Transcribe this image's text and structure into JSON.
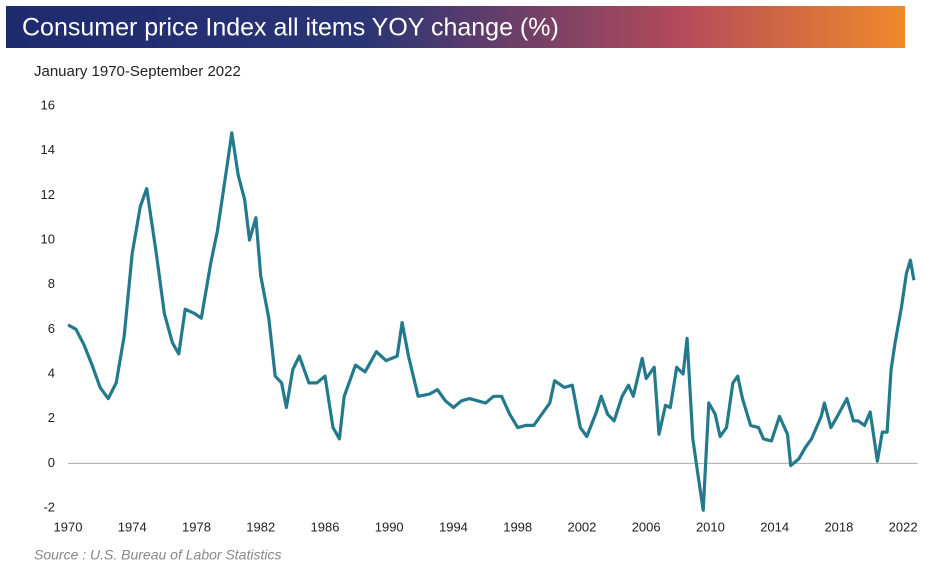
{
  "chart_data": {
    "type": "line",
    "title": "Consumer price Index all items YOY change (%)",
    "subtitle": "January 1970-September 2022",
    "source": "Source : U.S. Bureau of Labor Statistics",
    "xlim": [
      1970,
      2022.9
    ],
    "xticks": [
      1970,
      1974,
      1978,
      1982,
      1986,
      1990,
      1994,
      1998,
      2002,
      2006,
      2010,
      2014,
      2018,
      2022
    ],
    "ylim": [
      -2,
      16
    ],
    "yticks": [
      -2,
      0,
      2,
      4,
      6,
      8,
      10,
      12,
      14,
      16
    ],
    "series": [
      {
        "name": "CPI YOY change",
        "color": "#237a8c",
        "x": [
          1970.0,
          1970.5,
          1971.0,
          1971.5,
          1972.0,
          1972.5,
          1973.0,
          1973.5,
          1974.0,
          1974.5,
          1974.9,
          1975.5,
          1976.0,
          1976.5,
          1976.9,
          1977.3,
          1977.9,
          1978.3,
          1978.9,
          1979.3,
          1979.9,
          1980.2,
          1980.6,
          1981.0,
          1981.3,
          1981.7,
          1982.0,
          1982.5,
          1982.9,
          1983.3,
          1983.6,
          1984.0,
          1984.4,
          1985.0,
          1985.5,
          1986.0,
          1986.5,
          1986.9,
          1987.2,
          1987.9,
          1988.5,
          1989.2,
          1989.8,
          1990.5,
          1990.8,
          1991.2,
          1991.8,
          1992.5,
          1993.0,
          1993.5,
          1994.0,
          1994.5,
          1995.0,
          1995.5,
          1996.0,
          1996.5,
          1997.0,
          1997.5,
          1998.0,
          1998.5,
          1999.0,
          1999.5,
          2000.0,
          2000.3,
          2000.9,
          2001.4,
          2001.9,
          2002.3,
          2002.9,
          2003.2,
          2003.6,
          2004.0,
          2004.5,
          2004.9,
          2005.2,
          2005.75,
          2006.0,
          2006.5,
          2006.8,
          2007.2,
          2007.5,
          2007.9,
          2008.3,
          2008.55,
          2008.9,
          2009.2,
          2009.55,
          2009.9,
          2010.3,
          2010.6,
          2011.0,
          2011.4,
          2011.7,
          2012.0,
          2012.5,
          2013.0,
          2013.3,
          2013.8,
          2014.3,
          2014.8,
          2015.0,
          2015.5,
          2015.9,
          2016.3,
          2016.9,
          2017.1,
          2017.5,
          2017.9,
          2018.5,
          2018.9,
          2019.2,
          2019.6,
          2019.95,
          2020.4,
          2020.7,
          2021.0,
          2021.25,
          2021.5,
          2021.9,
          2022.2,
          2022.45,
          2022.67
        ],
        "values": [
          6.2,
          6.0,
          5.3,
          4.4,
          3.4,
          2.9,
          3.6,
          5.7,
          9.4,
          11.5,
          12.3,
          9.4,
          6.7,
          5.4,
          4.9,
          6.9,
          6.7,
          6.5,
          9.0,
          10.4,
          13.3,
          14.8,
          12.9,
          11.8,
          10.0,
          11.0,
          8.4,
          6.5,
          3.9,
          3.6,
          2.5,
          4.2,
          4.8,
          3.6,
          3.6,
          3.9,
          1.6,
          1.1,
          3.0,
          4.4,
          4.1,
          5.0,
          4.6,
          4.8,
          6.3,
          4.8,
          3.0,
          3.1,
          3.3,
          2.8,
          2.5,
          2.8,
          2.9,
          2.8,
          2.7,
          3.0,
          3.0,
          2.2,
          1.6,
          1.7,
          1.7,
          2.2,
          2.7,
          3.7,
          3.4,
          3.5,
          1.6,
          1.2,
          2.3,
          3.0,
          2.2,
          1.9,
          3.0,
          3.5,
          3.0,
          4.7,
          3.8,
          4.3,
          1.3,
          2.6,
          2.5,
          4.3,
          4.0,
          5.6,
          1.1,
          -0.4,
          -2.1,
          2.7,
          2.2,
          1.2,
          1.6,
          3.6,
          3.9,
          2.9,
          1.7,
          1.6,
          1.1,
          1.0,
          2.1,
          1.3,
          -0.1,
          0.2,
          0.7,
          1.1,
          2.1,
          2.7,
          1.6,
          2.1,
          2.9,
          1.9,
          1.9,
          1.7,
          2.3,
          0.1,
          1.4,
          1.4,
          4.2,
          5.4,
          7.0,
          8.5,
          9.1,
          8.2
        ]
      }
    ]
  }
}
